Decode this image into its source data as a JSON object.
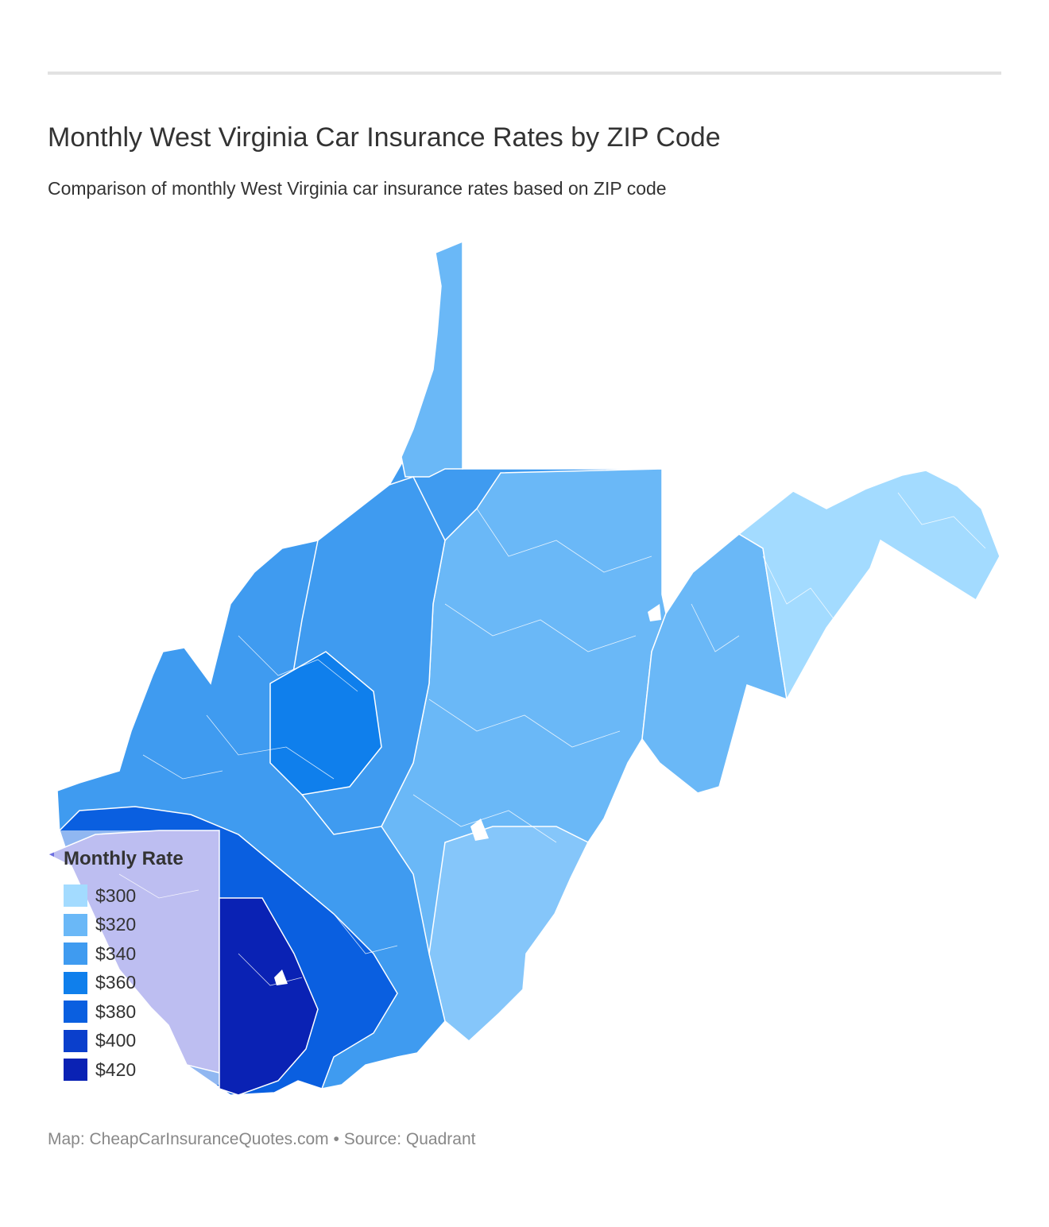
{
  "header": {
    "title": "Monthly West Virginia Car Insurance Rates by ZIP Code",
    "subtitle": "Comparison of monthly West Virginia car insurance rates based on ZIP code"
  },
  "legend": {
    "title": "Monthly Rate",
    "items": [
      {
        "label": "$300",
        "color": "#a3dbff"
      },
      {
        "label": "$320",
        "color": "#6ab8f7"
      },
      {
        "label": "$340",
        "color": "#3f9bf0"
      },
      {
        "label": "$360",
        "color": "#0f7fec"
      },
      {
        "label": "$380",
        "color": "#0a5fe0"
      },
      {
        "label": "$400",
        "color": "#0a3fcc"
      },
      {
        "label": "$420",
        "color": "#0a22b4"
      }
    ]
  },
  "map": {
    "regions": [
      {
        "region": "northern-panhandle",
        "rate_tier": "$320"
      },
      {
        "region": "north-central",
        "rate_tier": "$340"
      },
      {
        "region": "north-central-east",
        "rate_tier": "$320"
      },
      {
        "region": "eastern-panhandle",
        "rate_tier": "$300"
      },
      {
        "region": "potomac-highlands",
        "rate_tier": "$320"
      },
      {
        "region": "central",
        "rate_tier": "$340"
      },
      {
        "region": "kanawha-valley",
        "rate_tier": "$360"
      },
      {
        "region": "southeast",
        "rate_tier": "$320"
      },
      {
        "region": "southern-coalfields",
        "rate_tier": "$380"
      },
      {
        "region": "mingo-mcdowell",
        "rate_tier": "$420"
      },
      {
        "region": "wayne",
        "rate_tier": "$400"
      }
    ]
  },
  "footer": {
    "credit": "Map: CheapCarInsuranceQuotes.com • Source: Quadrant"
  }
}
